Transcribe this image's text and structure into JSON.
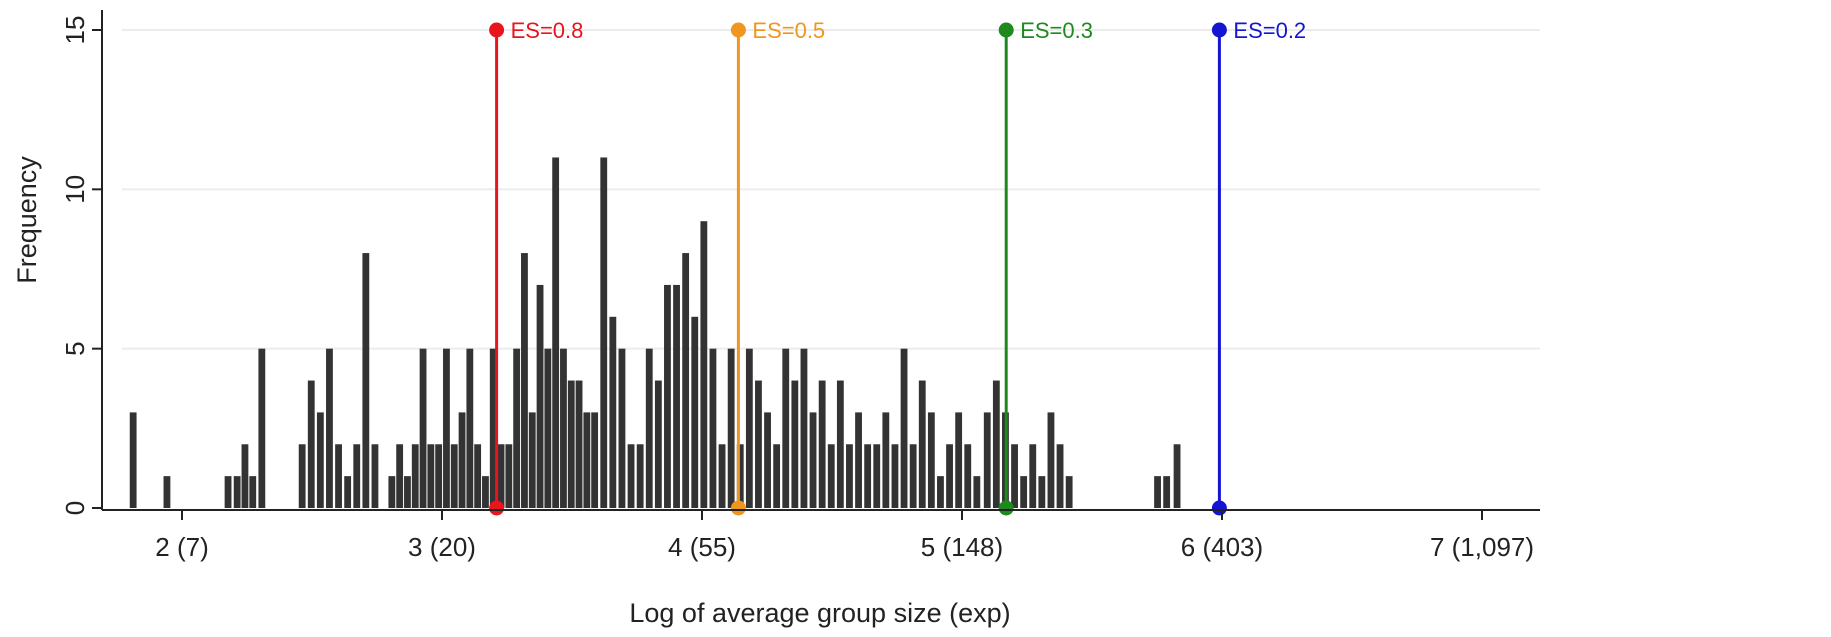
{
  "chart_data": {
    "type": "bar",
    "xlabel": "Log of average group size (exp)",
    "ylabel": "Frequency",
    "xlim": [
      1.8,
      7.25
    ],
    "ylim": [
      0,
      15
    ],
    "yticks": [
      0,
      5,
      10,
      15
    ],
    "xticks": [
      {
        "value": 2,
        "label": "2 (7)"
      },
      {
        "value": 3,
        "label": "3 (20)"
      },
      {
        "value": 4,
        "label": "4 (55)"
      },
      {
        "value": 5,
        "label": "5 (148)"
      },
      {
        "value": 6,
        "label": "6 (403)"
      },
      {
        "value": 7,
        "label": "7 (1,097)"
      }
    ],
    "grid": true,
    "bar_color": "#333333",
    "bin_width": 0.032,
    "bars": [
      {
        "x": 1.815,
        "y": 3
      },
      {
        "x": 1.945,
        "y": 1
      },
      {
        "x": 2.18,
        "y": 1
      },
      {
        "x": 2.215,
        "y": 1
      },
      {
        "x": 2.245,
        "y": 2
      },
      {
        "x": 2.275,
        "y": 1
      },
      {
        "x": 2.31,
        "y": 5
      },
      {
        "x": 2.465,
        "y": 2
      },
      {
        "x": 2.5,
        "y": 4
      },
      {
        "x": 2.535,
        "y": 3
      },
      {
        "x": 2.57,
        "y": 5
      },
      {
        "x": 2.605,
        "y": 2
      },
      {
        "x": 2.64,
        "y": 1
      },
      {
        "x": 2.675,
        "y": 2
      },
      {
        "x": 2.71,
        "y": 8
      },
      {
        "x": 2.745,
        "y": 2
      },
      {
        "x": 2.81,
        "y": 1
      },
      {
        "x": 2.84,
        "y": 2
      },
      {
        "x": 2.87,
        "y": 1
      },
      {
        "x": 2.9,
        "y": 2
      },
      {
        "x": 2.93,
        "y": 5
      },
      {
        "x": 2.96,
        "y": 2
      },
      {
        "x": 2.99,
        "y": 2
      },
      {
        "x": 3.02,
        "y": 5
      },
      {
        "x": 3.05,
        "y": 2
      },
      {
        "x": 3.08,
        "y": 3
      },
      {
        "x": 3.11,
        "y": 5
      },
      {
        "x": 3.14,
        "y": 2
      },
      {
        "x": 3.17,
        "y": 1
      },
      {
        "x": 3.2,
        "y": 5
      },
      {
        "x": 3.23,
        "y": 2
      },
      {
        "x": 3.26,
        "y": 2
      },
      {
        "x": 3.29,
        "y": 5
      },
      {
        "x": 3.32,
        "y": 8
      },
      {
        "x": 3.35,
        "y": 3
      },
      {
        "x": 3.38,
        "y": 7
      },
      {
        "x": 3.41,
        "y": 5
      },
      {
        "x": 3.44,
        "y": 11
      },
      {
        "x": 3.47,
        "y": 5
      },
      {
        "x": 3.5,
        "y": 4
      },
      {
        "x": 3.53,
        "y": 4
      },
      {
        "x": 3.56,
        "y": 3
      },
      {
        "x": 3.59,
        "y": 3
      },
      {
        "x": 3.625,
        "y": 11
      },
      {
        "x": 3.66,
        "y": 6
      },
      {
        "x": 3.695,
        "y": 5
      },
      {
        "x": 3.73,
        "y": 2
      },
      {
        "x": 3.765,
        "y": 2
      },
      {
        "x": 3.8,
        "y": 5
      },
      {
        "x": 3.835,
        "y": 4
      },
      {
        "x": 3.87,
        "y": 7
      },
      {
        "x": 3.905,
        "y": 7
      },
      {
        "x": 3.94,
        "y": 8
      },
      {
        "x": 3.975,
        "y": 6
      },
      {
        "x": 4.01,
        "y": 9
      },
      {
        "x": 4.045,
        "y": 5
      },
      {
        "x": 4.08,
        "y": 2
      },
      {
        "x": 4.115,
        "y": 5
      },
      {
        "x": 4.15,
        "y": 2
      },
      {
        "x": 4.185,
        "y": 5
      },
      {
        "x": 4.22,
        "y": 4
      },
      {
        "x": 4.255,
        "y": 3
      },
      {
        "x": 4.29,
        "y": 2
      },
      {
        "x": 4.325,
        "y": 5
      },
      {
        "x": 4.36,
        "y": 4
      },
      {
        "x": 4.395,
        "y": 5
      },
      {
        "x": 4.43,
        "y": 3
      },
      {
        "x": 4.465,
        "y": 4
      },
      {
        "x": 4.5,
        "y": 2
      },
      {
        "x": 4.535,
        "y": 4
      },
      {
        "x": 4.57,
        "y": 2
      },
      {
        "x": 4.605,
        "y": 3
      },
      {
        "x": 4.64,
        "y": 2
      },
      {
        "x": 4.675,
        "y": 2
      },
      {
        "x": 4.71,
        "y": 3
      },
      {
        "x": 4.745,
        "y": 2
      },
      {
        "x": 4.78,
        "y": 5
      },
      {
        "x": 4.815,
        "y": 2
      },
      {
        "x": 4.85,
        "y": 4
      },
      {
        "x": 4.885,
        "y": 3
      },
      {
        "x": 4.92,
        "y": 1
      },
      {
        "x": 4.955,
        "y": 2
      },
      {
        "x": 4.99,
        "y": 3
      },
      {
        "x": 5.025,
        "y": 2
      },
      {
        "x": 5.06,
        "y": 1
      },
      {
        "x": 5.1,
        "y": 3
      },
      {
        "x": 5.135,
        "y": 4
      },
      {
        "x": 5.17,
        "y": 3
      },
      {
        "x": 5.205,
        "y": 2
      },
      {
        "x": 5.24,
        "y": 1
      },
      {
        "x": 5.275,
        "y": 2
      },
      {
        "x": 5.31,
        "y": 1
      },
      {
        "x": 5.345,
        "y": 3
      },
      {
        "x": 5.38,
        "y": 2
      },
      {
        "x": 5.415,
        "y": 1
      },
      {
        "x": 5.755,
        "y": 1
      },
      {
        "x": 5.79,
        "y": 1
      },
      {
        "x": 5.83,
        "y": 2
      }
    ],
    "reference_lines": [
      {
        "x": 3.21,
        "label": "ES=0.8",
        "color": "#e8141e"
      },
      {
        "x": 4.14,
        "label": "ES=0.5",
        "color": "#f0961e"
      },
      {
        "x": 5.17,
        "label": "ES=0.3",
        "color": "#1e8a1e"
      },
      {
        "x": 5.99,
        "label": "ES=0.2",
        "color": "#1414d2"
      }
    ],
    "reference_top": 15
  }
}
